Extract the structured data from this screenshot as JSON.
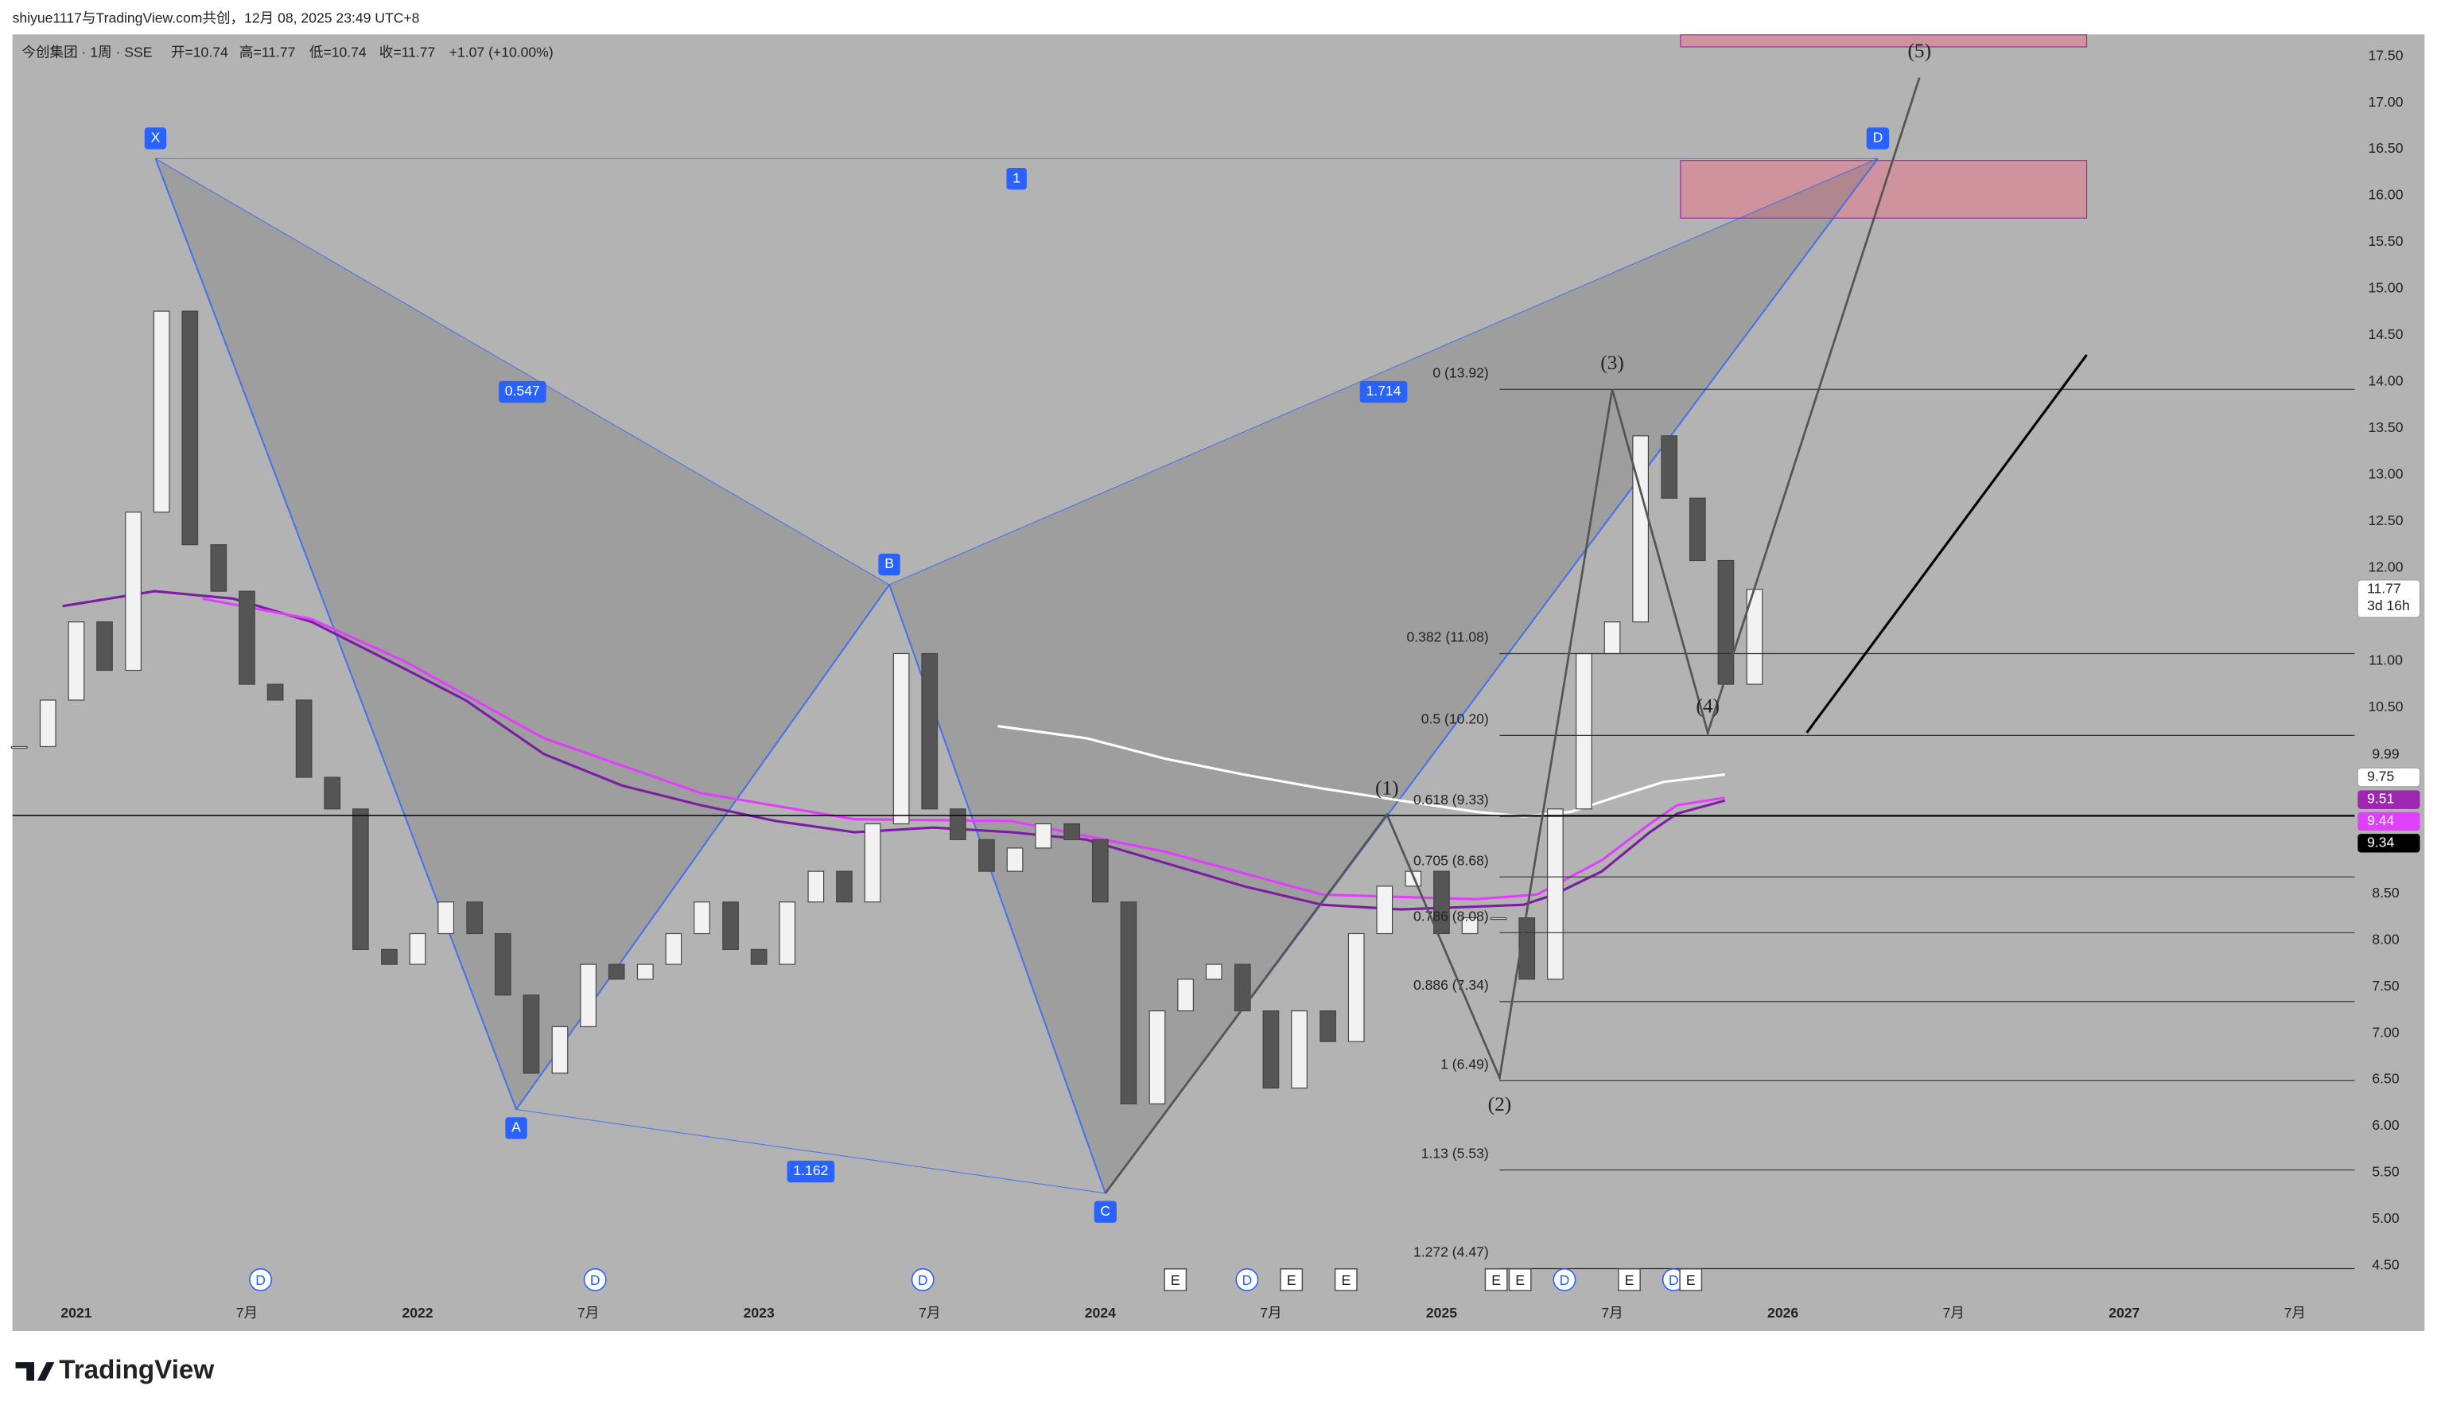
{
  "header": {
    "credit": "shiyue1117与TradingView.com共创，12月 08, 2025 23:49 UTC+8",
    "symbol": "今创集团 · 1周 · SSE",
    "ohlc": [
      "开=10.74",
      "高=11.77",
      "低=10.74",
      "收=11.77",
      "+1.07 (+10.00%)"
    ],
    "logo": "TradingView"
  },
  "chart_data": {
    "type": "candlestick",
    "x": [
      2020.833,
      2020.917,
      2021.0,
      2021.083,
      2021.167,
      2021.25,
      2021.333,
      2021.417,
      2021.5,
      2021.583,
      2021.667,
      2021.75,
      2021.833,
      2021.917,
      2022.0,
      2022.083,
      2022.167,
      2022.25,
      2022.333,
      2022.417,
      2022.5,
      2022.583,
      2022.667,
      2022.75,
      2022.833,
      2022.917,
      2023.0,
      2023.083,
      2023.167,
      2023.25,
      2023.333,
      2023.417,
      2023.5,
      2023.583,
      2023.667,
      2023.75,
      2023.833,
      2023.917,
      2024.0,
      2024.083,
      2024.167,
      2024.25,
      2024.333,
      2024.417,
      2024.5,
      2024.583,
      2024.667,
      2024.75,
      2024.833,
      2024.917,
      2025.0,
      2025.083,
      2025.167,
      2025.25,
      2025.333,
      2025.417,
      2025.5,
      2025.583,
      2025.667,
      2025.75,
      2025.833,
      2025.917
    ],
    "values": [
      10.08,
      10.58,
      11.42,
      10.9,
      12.6,
      14.76,
      12.25,
      11.75,
      10.75,
      10.58,
      9.75,
      9.41,
      7.9,
      7.74,
      8.07,
      8.41,
      8.07,
      7.41,
      6.57,
      7.07,
      7.74,
      7.58,
      7.74,
      8.07,
      8.41,
      7.9,
      7.74,
      8.41,
      8.74,
      8.41,
      9.25,
      11.08,
      9.41,
      9.08,
      8.74,
      8.99,
      9.25,
      9.08,
      8.41,
      6.24,
      7.24,
      7.58,
      7.74,
      7.24,
      6.41,
      7.24,
      6.91,
      8.07,
      8.58,
      8.74,
      8.07,
      8.24,
      8.24,
      7.58,
      9.41,
      11.08,
      11.42,
      13.42,
      12.75,
      12.08,
      10.75,
      11.77
    ],
    "xlim": [
      2020.813,
      2027.675
    ],
    "ylim": [
      3.799,
      17.734
    ],
    "xticks": [
      2021,
      {
        "value": 2021.5,
        "label": "7月"
      },
      2022,
      {
        "value": 2022.5,
        "label": "7月"
      },
      2023,
      {
        "value": 2023.5,
        "label": "7月"
      },
      2024,
      {
        "value": 2024.5,
        "label": "7月"
      },
      2025,
      {
        "value": 2025.5,
        "label": "7月"
      },
      2026,
      {
        "value": 2026.5,
        "label": "7月"
      },
      2027,
      {
        "value": 2027.5,
        "label": "7月"
      }
    ],
    "yticks": [
      {
        "value": 17.5,
        "label": "17.50"
      },
      {
        "value": 17,
        "label": "17.00"
      },
      {
        "value": 16.5,
        "label": "16.50"
      },
      {
        "value": 16,
        "label": "16.00"
      },
      {
        "value": 15.5,
        "label": "15.50"
      },
      {
        "value": 15,
        "label": "15.00"
      },
      {
        "value": 14.5,
        "label": "14.50"
      },
      {
        "value": 14,
        "label": "14.00"
      },
      {
        "value": 13.5,
        "label": "13.50"
      },
      {
        "value": 13,
        "label": "13.00"
      },
      {
        "value": 12.5,
        "label": "12.50"
      },
      {
        "value": 12,
        "label": "12.00"
      },
      {
        "value": 11,
        "label": "11.00"
      },
      {
        "value": 10.5,
        "label": "10.50"
      },
      9.99,
      {
        "value": 8.5,
        "label": "8.50"
      },
      {
        "value": 8,
        "label": "8.00"
      },
      {
        "value": 7.5,
        "label": "7.50"
      },
      {
        "value": 7,
        "label": "7.00"
      },
      {
        "value": 6.5,
        "label": "6.50"
      },
      {
        "value": 6,
        "label": "6.00"
      },
      {
        "value": 5.5,
        "label": "5.50"
      },
      {
        "value": 5,
        "label": "5.00"
      },
      {
        "value": 4.5,
        "label": "4.50"
      }
    ],
    "indicators": [
      {
        "color": "#7b1fa2",
        "x": [
          2020.96,
          2021.23,
          2021.46,
          2021.69,
          2021.96,
          2022.14,
          2022.37,
          2022.6,
          2022.83,
          2023.05,
          2023.28,
          2023.51,
          2023.74,
          2023.96,
          2024.19,
          2024.42,
          2024.65,
          2024.88,
          2025.1,
          2025.24,
          2025.33,
          2025.47,
          2025.61,
          2025.69,
          2025.83
        ],
        "values": [
          11.59,
          11.75,
          11.67,
          11.42,
          10.92,
          10.58,
          10.0,
          9.66,
          9.45,
          9.28,
          9.16,
          9.21,
          9.16,
          9.08,
          8.83,
          8.58,
          8.38,
          8.33,
          8.36,
          8.38,
          8.49,
          8.74,
          9.16,
          9.36,
          9.5
        ]
      },
      {
        "color": "#e040fb",
        "x": [
          2021.37,
          2021.69,
          2021.96,
          2022.37,
          2022.83,
          2023.28,
          2023.74,
          2024.19,
          2024.65,
          2025.1,
          2025.28,
          2025.47,
          2025.61,
          2025.69,
          2025.83
        ],
        "values": [
          11.67,
          11.45,
          11.0,
          10.17,
          9.58,
          9.3,
          9.28,
          8.95,
          8.49,
          8.44,
          8.49,
          8.86,
          9.25,
          9.45,
          9.53
        ]
      },
      {
        "color": "#ffffff",
        "x": [
          2023.7,
          2023.96,
          2024.19,
          2024.42,
          2024.65,
          2024.88,
          2025.1,
          2025.24,
          2025.38,
          2025.52,
          2025.65,
          2025.83
        ],
        "values": [
          10.3,
          10.17,
          9.95,
          9.78,
          9.63,
          9.5,
          9.38,
          9.33,
          9.38,
          9.55,
          9.7,
          9.78
        ]
      }
    ],
    "harmonic": {
      "points": [
        {
          "label": "X",
          "x": 2021.232,
          "value": 16.4
        },
        {
          "label": "A",
          "x": 2022.289,
          "value": 6.18
        },
        {
          "label": "B",
          "x": 2023.382,
          "value": 11.82
        },
        {
          "label": "C",
          "x": 2024.015,
          "value": 5.28
        },
        {
          "label": "D",
          "x": 2026.278,
          "value": 16.4
        }
      ],
      "ratios": [
        "0.547",
        "1.714",
        "1.162",
        "1"
      ]
    },
    "fib_levels": [
      {
        "label": "0 (13.92)",
        "value": 13.92
      },
      {
        "label": "0.382 (11.08)",
        "value": 11.08
      },
      {
        "label": "0.5 (10.20)",
        "value": 10.2
      },
      {
        "label": "0.618 (9.33)",
        "value": 9.33
      },
      {
        "label": "0.705 (8.68)",
        "value": 8.68
      },
      {
        "label": "0.786 (8.08)",
        "value": 8.08
      },
      {
        "label": "0.886 (7.34)",
        "value": 7.34
      },
      {
        "label": "1 (6.49)",
        "value": 6.49
      },
      {
        "label": "1.13 (5.53)",
        "value": 5.53
      },
      {
        "label": "1.272 (4.47)",
        "value": 4.47
      }
    ],
    "waves": [
      {
        "label": "(1)",
        "x": 2024.84,
        "value": 9.35
      },
      {
        "label": "(2)",
        "x": 2025.17,
        "value": 6.52
      },
      {
        "label": "(3)",
        "x": 2025.5,
        "value": 13.92
      },
      {
        "label": "(4)",
        "x": 2025.78,
        "value": 10.23
      },
      {
        "label": "(5)",
        "x": 2026.4,
        "value": 17.27
      }
    ],
    "projection": {
      "x": [
        2026.07,
        2026.89
      ],
      "values": [
        10.23,
        14.29
      ]
    },
    "zones": [
      {
        "x": [
          2025.7,
          2026.89
        ],
        "values": [
          15.76,
          16.38
        ]
      },
      {
        "x": [
          2025.7,
          2026.89
        ],
        "values": [
          17.6,
          17.73
        ]
      }
    ],
    "price_line": 9.34,
    "badges": [
      {
        "value": 11.77,
        "countdown": "3d 16h",
        "bg": "#ffffff",
        "fg": "#222222"
      },
      {
        "value": 9.75,
        "bg": "#ffffff",
        "fg": "#222222"
      },
      {
        "value": 9.51,
        "bg": "#9c27b0",
        "fg": "#ffffff"
      },
      {
        "value": 9.44,
        "bg": "#e040fb",
        "fg": "#ffffff"
      },
      {
        "value": 9.34,
        "bg": "#000000",
        "fg": "#ffffff"
      }
    ],
    "events": [
      {
        "label": "D",
        "x": 2021.54
      },
      {
        "label": "D",
        "x": 2022.52
      },
      {
        "label": "D",
        "x": 2023.48
      },
      {
        "label": "D",
        "x": 2024.43
      },
      {
        "label": "D",
        "x": 2025.36
      },
      {
        "label": "D",
        "x": 2025.68
      },
      {
        "label": "E",
        "x": 2024.22
      },
      {
        "label": "E",
        "x": 2024.56
      },
      {
        "label": "E",
        "x": 2024.72
      },
      {
        "label": "E",
        "x": 2025.16
      },
      {
        "label": "E",
        "x": 2025.23
      },
      {
        "label": "E",
        "x": 2025.55
      },
      {
        "label": "E",
        "x": 2025.73
      }
    ]
  }
}
